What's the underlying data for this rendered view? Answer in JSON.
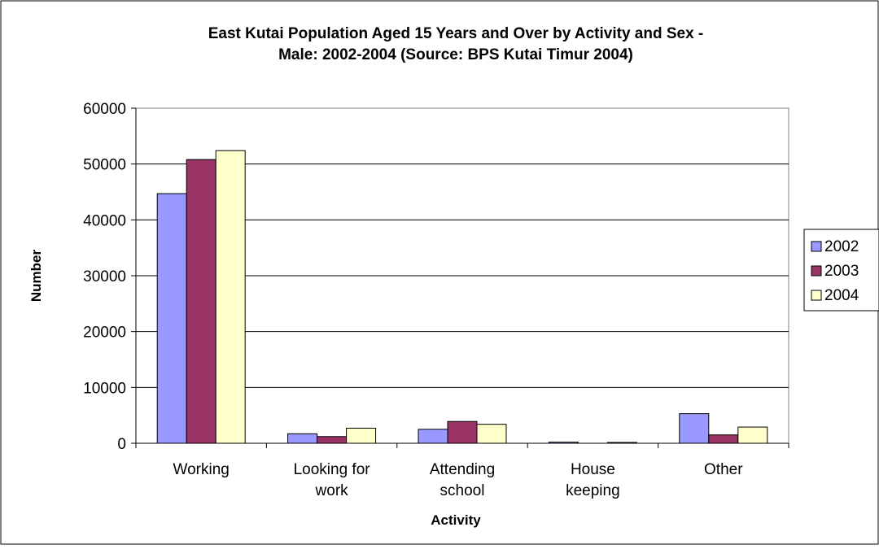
{
  "chart_data": {
    "type": "bar",
    "title": "East Kutai Population Aged 15 Years and Over by Activity and Sex -",
    "subtitle": "Male: 2002-2004 (Source: BPS Kutai Timur 2004)",
    "xlabel": "Activity",
    "ylabel": "Number",
    "ylim": [
      0,
      60000
    ],
    "yticks": [
      "0",
      "10000",
      "20000",
      "30000",
      "40000",
      "50000",
      "60000"
    ],
    "categories": [
      [
        "Working"
      ],
      [
        "Looking for",
        "work"
      ],
      [
        "Attending",
        "school"
      ],
      [
        "House",
        "keeping"
      ],
      [
        "Other"
      ]
    ],
    "series": [
      {
        "name": "2002",
        "color": "#9999ff",
        "values": [
          44700,
          1700,
          2500,
          200,
          5300
        ]
      },
      {
        "name": "2003",
        "color": "#993366",
        "values": [
          50800,
          1200,
          3900,
          0,
          1500
        ]
      },
      {
        "name": "2004",
        "color": "#ffffcc",
        "values": [
          52400,
          2700,
          3400,
          150,
          2900
        ]
      }
    ],
    "grid": true,
    "legend": "right"
  }
}
